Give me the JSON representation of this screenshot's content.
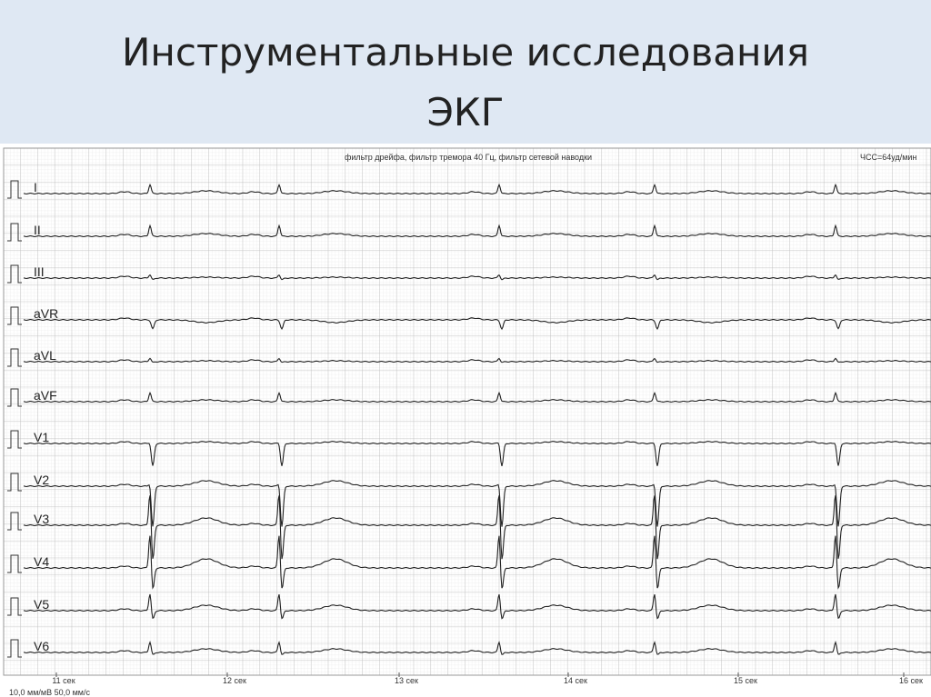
{
  "title": [
    "Инструментальные исследования",
    "ЭКГ"
  ],
  "ecg": {
    "filter_note": "фильтр дрейфа, фильтр тремора 40 Гц, фильтр сетевой наводки",
    "heart_rate": "ЧСС=64уд/мин",
    "leads": [
      "I",
      "II",
      "III",
      "aVR",
      "aVL",
      "aVF",
      "V1",
      "V2",
      "V3",
      "V4",
      "V5",
      "V6"
    ],
    "time_labels": [
      "11 сек",
      "12 сек",
      "13 сек",
      "14 сек",
      "15 сек",
      "16 сек"
    ],
    "footer": "10,0 мм/мВ 50,0 мм/с"
  }
}
